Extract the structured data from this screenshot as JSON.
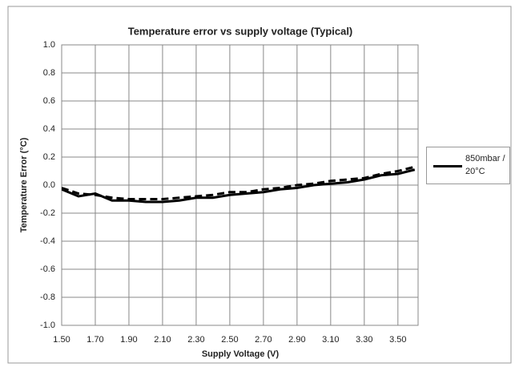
{
  "chart_data": {
    "type": "line",
    "title": "Temperature error vs supply voltage (Typical)",
    "x_label": "Supply Voltage (V)",
    "y_label": "Temperature Error  (°C)",
    "x": [
      1.5,
      1.6,
      1.7,
      1.8,
      1.9,
      2.0,
      2.1,
      2.2,
      2.3,
      2.4,
      2.5,
      2.6,
      2.7,
      2.8,
      2.9,
      3.0,
      3.1,
      3.2,
      3.3,
      3.4,
      3.5,
      3.6
    ],
    "series": [
      {
        "name": "850mbar / 20°C",
        "color": "#000000",
        "dash": false,
        "values": [
          -0.03,
          -0.08,
          -0.06,
          -0.11,
          -0.11,
          -0.12,
          -0.12,
          -0.11,
          -0.09,
          -0.09,
          -0.07,
          -0.06,
          -0.05,
          -0.03,
          -0.02,
          0.0,
          0.01,
          0.02,
          0.04,
          0.07,
          0.08,
          0.11
        ]
      },
      {
        "color": "#000000",
        "dash": true,
        "values": [
          -0.02,
          -0.06,
          -0.07,
          -0.09,
          -0.1,
          -0.1,
          -0.1,
          -0.09,
          -0.08,
          -0.07,
          -0.05,
          -0.05,
          -0.03,
          -0.02,
          0.0,
          0.01,
          0.03,
          0.04,
          0.05,
          0.08,
          0.1,
          0.13
        ]
      }
    ],
    "xlim": [
      1.5,
      3.62
    ],
    "xticks": [
      {
        "value": 1.5,
        "label": "1.50"
      },
      {
        "value": 1.7,
        "label": "1.70"
      },
      {
        "value": 1.9,
        "label": "1.90"
      },
      {
        "value": 2.1,
        "label": "2.10"
      },
      {
        "value": 2.3,
        "label": "2.30"
      },
      {
        "value": 2.5,
        "label": "2.50"
      },
      {
        "value": 2.7,
        "label": "2.70"
      },
      {
        "value": 2.9,
        "label": "2.90"
      },
      {
        "value": 3.1,
        "label": "3.10"
      },
      {
        "value": 3.3,
        "label": "3.30"
      },
      {
        "value": 3.5,
        "label": "3.50"
      }
    ],
    "ylim": [
      -1.0,
      1.0
    ],
    "yticks": [
      {
        "value": -1.0,
        "label": "-1.0"
      },
      -0.8,
      -0.6,
      -0.4,
      -0.2,
      {
        "value": 0,
        "label": "0.0"
      },
      0.2,
      0.4,
      0.6,
      0.8,
      {
        "value": 1.0,
        "label": "1.0"
      }
    ],
    "grid": true,
    "legend": "right"
  }
}
